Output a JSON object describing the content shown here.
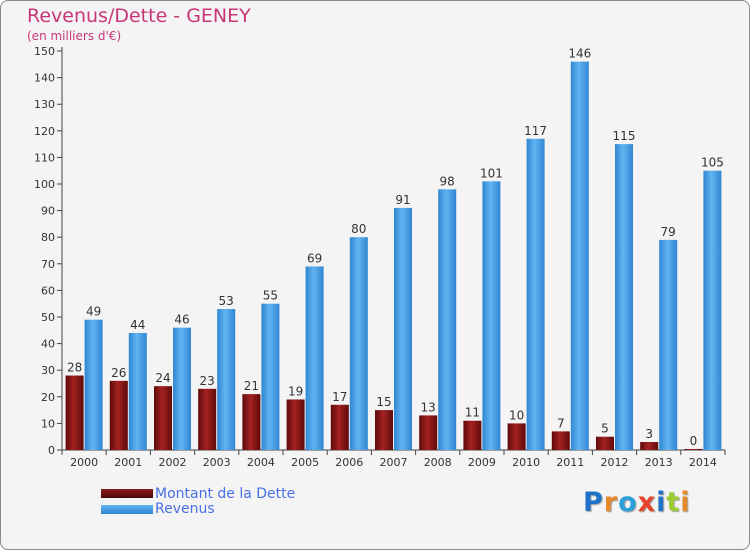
{
  "chart_data": {
    "type": "bar",
    "title": "Revenus/Dette - GENEY",
    "subtitle": "(en milliers d'€)",
    "categories": [
      "2000",
      "2001",
      "2002",
      "2003",
      "2004",
      "2005",
      "2006",
      "2007",
      "2008",
      "2009",
      "2010",
      "2011",
      "2012",
      "2013",
      "2014"
    ],
    "series": [
      {
        "name": "Montant de la Dette",
        "color": "#7a1010",
        "values": [
          28,
          26,
          24,
          23,
          21,
          19,
          17,
          15,
          13,
          11,
          10,
          7,
          5,
          3,
          0
        ]
      },
      {
        "name": "Revenus",
        "color": "#3f98e0",
        "values": [
          49,
          44,
          46,
          53,
          55,
          69,
          80,
          91,
          98,
          101,
          117,
          146,
          115,
          79,
          105
        ]
      }
    ],
    "ylim": [
      0,
      150
    ],
    "y_ticks": [
      0,
      10,
      20,
      30,
      40,
      50,
      60,
      70,
      80,
      90,
      100,
      110,
      120,
      130,
      140,
      150
    ],
    "grid": false,
    "data_labels": true,
    "legend_position": "bottom-left"
  },
  "logo": {
    "text": "Proxiti",
    "colors": [
      "#1e73c8",
      "#e6892b",
      "#2aa0d8",
      "#e8432a",
      "#1e73c8",
      "#9acd32",
      "#e6892b"
    ]
  }
}
